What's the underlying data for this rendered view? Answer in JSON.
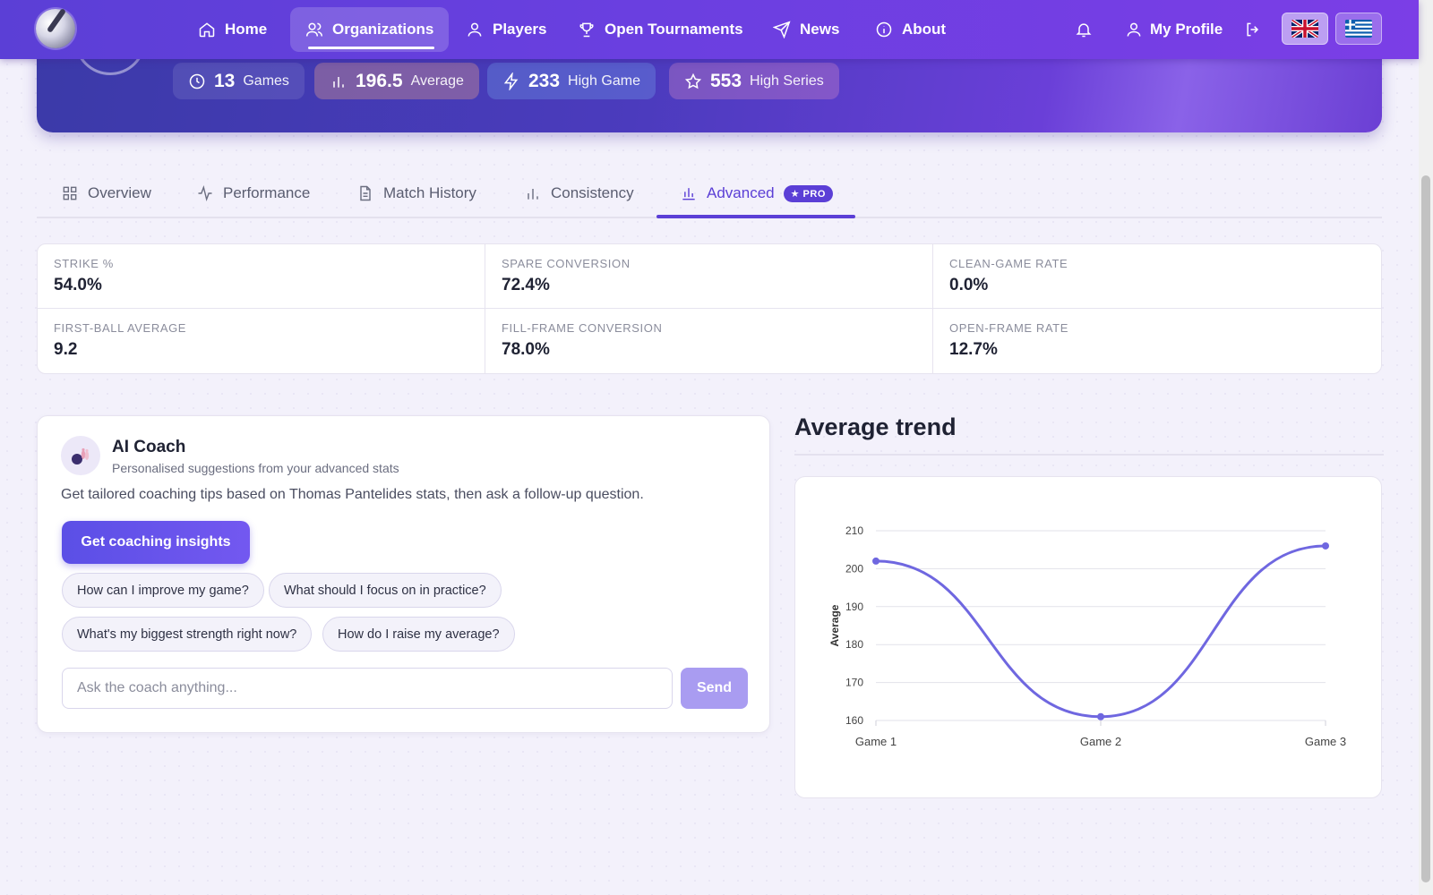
{
  "nav": {
    "items": [
      {
        "label": "Home",
        "icon": "home-icon"
      },
      {
        "label": "Organizations",
        "icon": "users-icon",
        "active": true
      },
      {
        "label": "Players",
        "icon": "user-icon"
      },
      {
        "label": "Open Tournaments",
        "icon": "trophy-icon"
      },
      {
        "label": "News",
        "icon": "send-icon"
      },
      {
        "label": "About",
        "icon": "info-icon"
      }
    ],
    "profile_label": "My Profile",
    "languages": [
      {
        "code": "en",
        "flag": "uk-flag-icon",
        "selected": true
      },
      {
        "code": "el",
        "flag": "greek-flag-icon",
        "selected": false
      }
    ]
  },
  "hero": {
    "stats": [
      {
        "value": "13",
        "label": "Games",
        "icon": "clock-icon"
      },
      {
        "value": "196.5",
        "label": "Average",
        "icon": "bar-chart-icon"
      },
      {
        "value": "233",
        "label": "High Game",
        "icon": "lightning-icon"
      },
      {
        "value": "553",
        "label": "High Series",
        "icon": "star-icon"
      }
    ]
  },
  "tabs": [
    {
      "label": "Overview",
      "icon": "grid-icon"
    },
    {
      "label": "Performance",
      "icon": "activity-icon"
    },
    {
      "label": "Match History",
      "icon": "document-icon"
    },
    {
      "label": "Consistency",
      "icon": "bar-chart-icon"
    },
    {
      "label": "Advanced",
      "icon": "bar-chart-icon",
      "active": true,
      "badge": "★ PRO"
    }
  ],
  "advanced_stats": [
    {
      "label": "STRIKE %",
      "value": "54.0%"
    },
    {
      "label": "SPARE CONVERSION",
      "value": "72.4%"
    },
    {
      "label": "CLEAN-GAME RATE",
      "value": "0.0%"
    },
    {
      "label": "FIRST-BALL AVERAGE",
      "value": "9.2"
    },
    {
      "label": "FILL-FRAME CONVERSION",
      "value": "78.0%"
    },
    {
      "label": "OPEN-FRAME RATE",
      "value": "12.7%"
    }
  ],
  "coach": {
    "title": "AI Coach",
    "subtitle": "Personalised suggestions from your advanced stats",
    "description": "Get tailored coaching tips based on Thomas Pantelides stats, then ask a follow-up question.",
    "primary_button": "Get coaching insights",
    "suggestions": [
      "How can I improve my game?",
      "What should I focus on in practice?",
      "What's my biggest strength right now?",
      "How do I raise my average?"
    ],
    "input_placeholder": "Ask the coach anything...",
    "input_value": "",
    "send_label": "Send"
  },
  "trend": {
    "title": "Average trend"
  },
  "chart_data": {
    "type": "line",
    "categories": [
      "Game 1",
      "Game 2",
      "Game 3"
    ],
    "series": [
      {
        "values": [
          202,
          161,
          206
        ],
        "color": "#6f67e0"
      }
    ],
    "ylabel": "Average",
    "xlabel": "",
    "ylim": [
      160,
      210
    ],
    "yticks": [
      160,
      170,
      180,
      190,
      200,
      210
    ],
    "grid": true,
    "smooth": true
  },
  "colors": {
    "accent": "#5b3fd6",
    "line": "#6f67e0",
    "send_disabled": "#a99cf1"
  }
}
